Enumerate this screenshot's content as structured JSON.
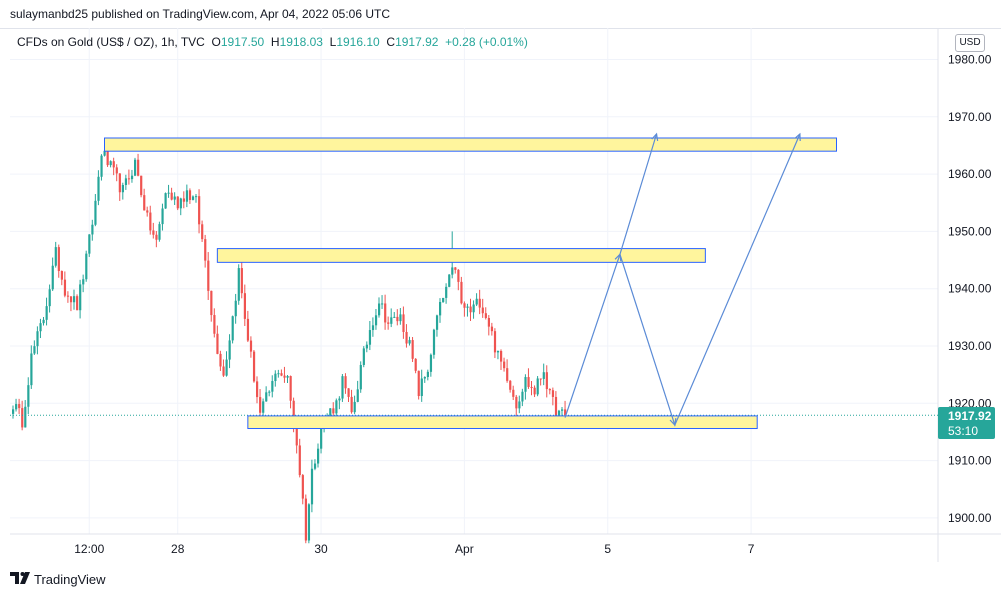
{
  "publisher_line": "sulaymanbd25 published on TradingView.com, Apr 04, 2022 05:06 UTC",
  "legend": {
    "symbol": "CFDs on Gold (US$ / OZ), 1h, TVC",
    "o_label": "O",
    "o": "1917.50",
    "h_label": "H",
    "h": "1918.03",
    "l_label": "L",
    "l": "1916.10",
    "c_label": "C",
    "c": "1917.92",
    "change": "+0.28 (+0.01%)"
  },
  "currency": "USD",
  "last_price": "1917.92",
  "countdown": "53:10",
  "brand": "TradingView",
  "colors": {
    "up": "#26a69a",
    "down": "#ef5350",
    "zone_fill": "#fff59d",
    "zone_stroke": "#2962ff",
    "projection": "#5b8bd6"
  },
  "chart_data": {
    "type": "candlestick",
    "symbol": "CFDs on Gold (US$ / OZ)",
    "interval": "1h",
    "y_ticks": [
      "1980.00",
      "1970.00",
      "1960.00",
      "1950.00",
      "1940.00",
      "1930.00",
      "1920.00",
      "1910.00",
      "1900.00"
    ],
    "ylim": [
      1896,
      1983
    ],
    "x_ticks": [
      {
        "label": "12:00",
        "idx": 25
      },
      {
        "label": "28",
        "idx": 54
      },
      {
        "label": "30",
        "idx": 101
      },
      {
        "label": "Apr",
        "idx": 148
      },
      {
        "label": "5",
        "idx": 195
      },
      {
        "label": "7",
        "idx": 242
      }
    ],
    "x_range": [
      -0.5,
      299
    ],
    "last_price": 1917.92,
    "anchors": [
      [
        0,
        1920
      ],
      [
        3,
        1917
      ],
      [
        6,
        1928
      ],
      [
        10,
        1935
      ],
      [
        14,
        1946
      ],
      [
        17,
        1940
      ],
      [
        21,
        1937
      ],
      [
        24,
        1945
      ],
      [
        27,
        1955
      ],
      [
        29,
        1964
      ],
      [
        33,
        1960
      ],
      [
        36,
        1957
      ],
      [
        40,
        1962
      ],
      [
        44,
        1952
      ],
      [
        47,
        1948
      ],
      [
        50,
        1957
      ],
      [
        54,
        1955
      ],
      [
        57,
        1957
      ],
      [
        60,
        1955
      ],
      [
        63,
        1945
      ],
      [
        66,
        1932
      ],
      [
        69,
        1925
      ],
      [
        72,
        1935
      ],
      [
        74,
        1943
      ],
      [
        76,
        1935
      ],
      [
        78,
        1928
      ],
      [
        81,
        1918
      ],
      [
        84,
        1922
      ],
      [
        87,
        1926
      ],
      [
        90,
        1924
      ],
      [
        93,
        1913
      ],
      [
        95,
        1903
      ],
      [
        96,
        1897
      ],
      [
        98,
        1908
      ],
      [
        101,
        1916
      ],
      [
        103,
        1918
      ],
      [
        106,
        1920
      ],
      [
        108,
        1924
      ],
      [
        111,
        1918
      ],
      [
        114,
        1926
      ],
      [
        117,
        1933
      ],
      [
        120,
        1938
      ],
      [
        123,
        1934
      ],
      [
        127,
        1935
      ],
      [
        130,
        1930
      ],
      [
        133,
        1922
      ],
      [
        136,
        1926
      ],
      [
        139,
        1935
      ],
      [
        142,
        1940
      ],
      [
        145,
        1944
      ],
      [
        147,
        1937
      ],
      [
        150,
        1936
      ],
      [
        153,
        1938
      ],
      [
        156,
        1934
      ],
      [
        159,
        1928
      ],
      [
        162,
        1925
      ],
      [
        165,
        1920
      ],
      [
        168,
        1924
      ],
      [
        171,
        1922
      ],
      [
        174,
        1926
      ],
      [
        176,
        1921
      ],
      [
        179,
        1918
      ],
      [
        181,
        1917.92
      ]
    ],
    "zones": [
      {
        "idx0": 30,
        "idx1": 270,
        "top": 1966.3,
        "bottom": 1964
      },
      {
        "idx0": 67,
        "idx1": 227,
        "top": 1947,
        "bottom": 1944.6
      },
      {
        "idx0": 77,
        "idx1": 244,
        "top": 1917.8,
        "bottom": 1915.6
      }
    ],
    "projection_paths": [
      [
        [
          181,
          1917.5
        ],
        [
          199,
          1946
        ],
        [
          211,
          1967
        ]
      ],
      [
        [
          199,
          1946
        ],
        [
          217,
          1916.2
        ],
        [
          258,
          1967
        ]
      ]
    ],
    "notable_spikes": [
      {
        "idx": 144,
        "high": 1950
      }
    ]
  }
}
